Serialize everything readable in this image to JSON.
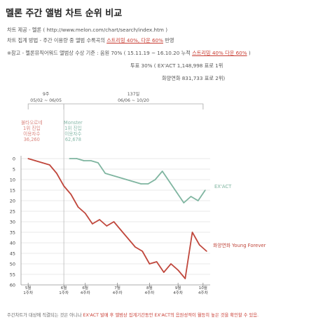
{
  "header": {
    "title": "멜론 주간 앨범 차트 순위 비교",
    "source": "차트 제공 - 멜론 ( http://www.melon.com/chart/search/index.htm )",
    "method_pre": "차트 집계 방법 - 주간 이용량 중 앨범 수록곡의 ",
    "method_hl": "스트리밍 40%, 다운 60%",
    "method_post": " 반영",
    "note_pre": "※참고 - 멜론뮤직어워드 앨범상 수상 기준 : 음원 70% ( 15.11.19 ~ 16.10.20 누적 ",
    "note_hl": "스트리밍 40% 다운 60%",
    "note_post": " )",
    "vote": "투표 30% ( EX'ACT 1,148,998 표로 1위",
    "vote2": "화양연화    831,733 표로 2위)"
  },
  "footer": {
    "pre": "주간차트가 대상에 직결되는 것은 아니나 ",
    "red": "EX'ACT 발매 후 앨범상 집계기간동안 EX'ACT의 음원성적이 월등히 높은 것을 확인할 수 있음."
  },
  "chart_data": {
    "type": "line",
    "title": "",
    "y_inverted": true,
    "ylim": [
      0,
      60
    ],
    "yticks": [
      0,
      5,
      10,
      15,
      20,
      25,
      30,
      35,
      40,
      45,
      50,
      55,
      60
    ],
    "xticks": [
      {
        "l1": "5월",
        "l2": "1주차",
        "x": 1
      },
      {
        "l1": "6월",
        "l2": "1주차",
        "x": 6
      },
      {
        "l1": "6월",
        "l2": "4주차",
        "x": 9
      },
      {
        "l1": "7월",
        "l2": "4주차",
        "x": 13.5
      },
      {
        "l1": "8월",
        "l2": "4주차",
        "x": 18
      },
      {
        "l1": "9월",
        "l2": "4주차",
        "x": 22
      },
      {
        "l1": "10월",
        "l2": "4주차",
        "x": 25.5
      }
    ],
    "xlim": [
      0,
      26.5
    ],
    "brackets": [
      {
        "weeks": "9주",
        "dates": "05/02 ~ 06/05",
        "from": 1,
        "to": 6
      },
      {
        "weeks": "137일",
        "dates": "06/06 ~ 10/20",
        "from": 6,
        "to": 25.5
      }
    ],
    "annotations": [
      {
        "lines": [
          "불타오르네",
          "1위 진입",
          "이용자수",
          "36,260"
        ],
        "x": 1.5,
        "color": "#d9837c"
      },
      {
        "lines": [
          "Monster",
          "1위 진입",
          "이용자수",
          "62,678"
        ],
        "x": 7.3,
        "color": "#86b8a8"
      }
    ],
    "series": [
      {
        "name": "EX'ACT",
        "color": "#7fb5a0",
        "x": [
          6.8,
          7.8,
          8.8,
          9.8,
          10.8,
          11.8,
          12.8,
          13.8,
          14.8,
          15.8,
          16.8,
          17.8,
          18.8,
          19.8,
          20.8,
          21.8,
          22.8,
          23.8,
          24.8,
          25.8
        ],
        "y": [
          0,
          0,
          1,
          1,
          2,
          7,
          8,
          9,
          10,
          11,
          12,
          12,
          10,
          6,
          11,
          16,
          21,
          18,
          20,
          15
        ]
      },
      {
        "name": "화양연화 Young Forever",
        "color": "#c0473c",
        "x": [
          1,
          2,
          3,
          4,
          5,
          6,
          7,
          8,
          9,
          10,
          11,
          12,
          13,
          14,
          15,
          16,
          17,
          18,
          19,
          20,
          21,
          22,
          23,
          24,
          25,
          26
        ],
        "y": [
          0,
          1,
          2,
          3,
          7,
          13,
          17,
          23,
          26,
          31,
          29,
          32,
          30,
          34,
          38,
          42,
          44,
          50,
          49,
          54,
          50,
          53,
          57,
          35,
          41,
          44
        ]
      }
    ]
  }
}
